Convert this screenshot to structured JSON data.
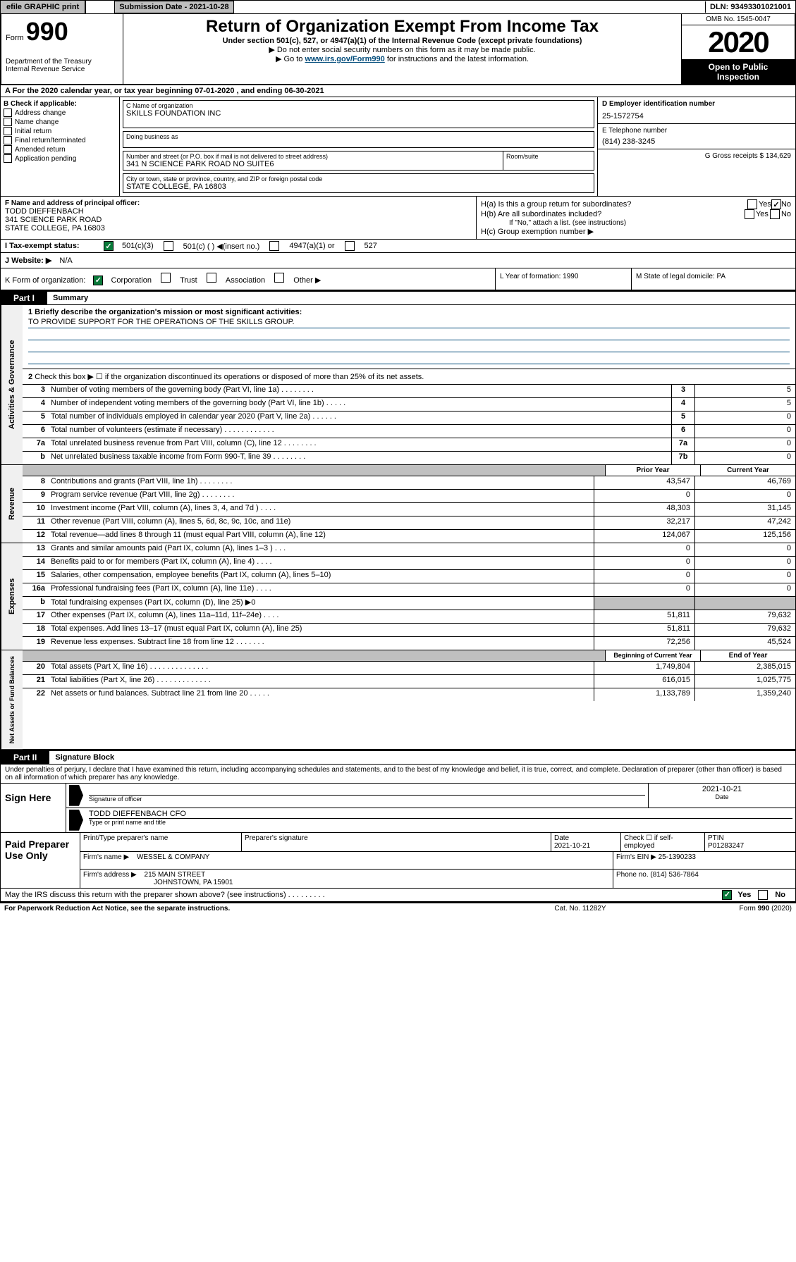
{
  "topbar": {
    "efile": "efile GRAPHIC print",
    "subdate_label": "Submission Date - 2021-10-28",
    "dln": "DLN: 93493301021001"
  },
  "header": {
    "form_prefix": "Form",
    "form_number": "990",
    "dept": "Department of the Treasury",
    "irs": "Internal Revenue Service",
    "title": "Return of Organization Exempt From Income Tax",
    "subtitle": "Under section 501(c), 527, or 4947(a)(1) of the Internal Revenue Code (except private foundations)",
    "note1": "▶ Do not enter social security numbers on this form as it may be made public.",
    "note2_pre": "▶ Go to ",
    "note2_link": "www.irs.gov/Form990",
    "note2_post": " for instructions and the latest information.",
    "omb": "OMB No. 1545-0047",
    "year": "2020",
    "inspect1": "Open to Public",
    "inspect2": "Inspection"
  },
  "row_a": "A   For the 2020 calendar year, or tax year beginning 07-01-2020     , and ending 06-30-2021",
  "col_b": {
    "header": "B Check if applicable:",
    "items": [
      "Address change",
      "Name change",
      "Initial return",
      "Final return/terminated",
      "Amended return",
      "Application pending"
    ]
  },
  "name_c": {
    "label": "C Name of organization",
    "value": "SKILLS FOUNDATION INC",
    "dba_label": "Doing business as",
    "addr_label": "Number and street (or P.O. box if mail is not delivered to street address)",
    "addr_value": "341 N SCIENCE PARK ROAD NO SUITE6",
    "room_label": "Room/suite",
    "city_label": "City or town, state or province, country, and ZIP or foreign postal code",
    "city_value": "STATE COLLEGE, PA  16803"
  },
  "col_d": {
    "label": "D Employer identification number",
    "value": "25-1572754"
  },
  "col_e": {
    "label": "E Telephone number",
    "value": "(814) 238-3245"
  },
  "col_g": {
    "label": "G Gross receipts $ 134,629"
  },
  "f_box": {
    "label": "F  Name and address of principal officer:",
    "name": "TODD DIEFFENBACH",
    "addr1": "341 SCIENCE PARK ROAD",
    "addr2": "STATE COLLEGE, PA  16803"
  },
  "h_box": {
    "ha": "H(a)  Is this a group return for subordinates?",
    "hb": "H(b)  Are all subordinates included?",
    "hb_note": "If \"No,\" attach a list. (see instructions)",
    "hc": "H(c)  Group exemption number ▶",
    "yes": "Yes",
    "no": "No"
  },
  "tax_status": {
    "label": "I    Tax-exempt status:",
    "opt1": "501(c)(3)",
    "opt2": "501(c) (  ) ◀(insert no.)",
    "opt3": "4947(a)(1) or",
    "opt4": "527"
  },
  "website": {
    "label": "J   Website: ▶",
    "value": "N/A"
  },
  "k_row": {
    "label": "K Form of organization:",
    "corp": "Corporation",
    "trust": "Trust",
    "assoc": "Association",
    "other": "Other ▶",
    "l": "L Year of formation: 1990",
    "m": "M State of legal domicile: PA"
  },
  "parts": {
    "p1": "Part I",
    "p1_title": "Summary",
    "p2": "Part II",
    "p2_title": "Signature Block"
  },
  "sides": {
    "gov": "Activities & Governance",
    "rev": "Revenue",
    "exp": "Expenses",
    "net": "Net Assets or Fund Balances"
  },
  "mission": {
    "label": "1   Briefly describe the organization's mission or most significant activities:",
    "text": "TO PROVIDE SUPPORT FOR THE OPERATIONS OF THE SKILLS GROUP."
  },
  "gov_lines": {
    "l2": "Check this box ▶ ☐  if the organization discontinued its operations or disposed of more than 25% of its net assets.",
    "l3": {
      "num": "3",
      "desc": "Number of voting members of the governing body (Part VI, line 1a)   .   .   .   .   .   .   .   .",
      "key": "3",
      "val": "5"
    },
    "l4": {
      "num": "4",
      "desc": "Number of independent voting members of the governing body (Part VI, line 1b)   .   .   .   .   .",
      "key": "4",
      "val": "5"
    },
    "l5": {
      "num": "5",
      "desc": "Total number of individuals employed in calendar year 2020 (Part V, line 2a)   .   .   .   .   .   .",
      "key": "5",
      "val": "0"
    },
    "l6": {
      "num": "6",
      "desc": "Total number of volunteers (estimate if necessary)   .   .   .   .   .   .   .   .   .   .   .   .",
      "key": "6",
      "val": "0"
    },
    "l7a": {
      "num": "7a",
      "desc": "Total unrelated business revenue from Part VIII, column (C), line 12   .   .   .   .   .   .   .   .",
      "key": "7a",
      "val": "0"
    },
    "l7b": {
      "num": "b",
      "desc": "Net unrelated business taxable income from Form 990-T, line 39    .   .   .   .   .   .   .   .",
      "key": "7b",
      "val": "0"
    }
  },
  "year_hdr": {
    "prior": "Prior Year",
    "current": "Current Year"
  },
  "rev_lines": [
    {
      "num": "8",
      "desc": "Contributions and grants (Part VIII, line 1h)   .   .   .   .   .   .   .   .",
      "prior": "43,547",
      "curr": "46,769"
    },
    {
      "num": "9",
      "desc": "Program service revenue (Part VIII, line 2g)   .   .   .   .   .   .   .   .",
      "prior": "0",
      "curr": "0"
    },
    {
      "num": "10",
      "desc": "Investment income (Part VIII, column (A), lines 3, 4, and 7d )   .   .   .   .",
      "prior": "48,303",
      "curr": "31,145"
    },
    {
      "num": "11",
      "desc": "Other revenue (Part VIII, column (A), lines 5, 6d, 8c, 9c, 10c, and 11e)",
      "prior": "32,217",
      "curr": "47,242"
    },
    {
      "num": "12",
      "desc": "Total revenue—add lines 8 through 11 (must equal Part VIII, column (A), line 12)",
      "prior": "124,067",
      "curr": "125,156"
    }
  ],
  "exp_lines": [
    {
      "num": "13",
      "desc": "Grants and similar amounts paid (Part IX, column (A), lines 1–3 )   .   .   .",
      "prior": "0",
      "curr": "0"
    },
    {
      "num": "14",
      "desc": "Benefits paid to or for members (Part IX, column (A), line 4)   .   .   .   .",
      "prior": "0",
      "curr": "0"
    },
    {
      "num": "15",
      "desc": "Salaries, other compensation, employee benefits (Part IX, column (A), lines 5–10)",
      "prior": "0",
      "curr": "0"
    },
    {
      "num": "16a",
      "desc": "Professional fundraising fees (Part IX, column (A), line 11e)   .   .   .   .",
      "prior": "0",
      "curr": "0"
    },
    {
      "num": "b",
      "desc": "Total fundraising expenses (Part IX, column (D), line 25) ▶0",
      "prior": "gray",
      "curr": "gray"
    },
    {
      "num": "17",
      "desc": "Other expenses (Part IX, column (A), lines 11a–11d, 11f–24e)   .   .   .   .",
      "prior": "51,811",
      "curr": "79,632"
    },
    {
      "num": "18",
      "desc": "Total expenses. Add lines 13–17 (must equal Part IX, column (A), line 25)",
      "prior": "51,811",
      "curr": "79,632"
    },
    {
      "num": "19",
      "desc": "Revenue less expenses. Subtract line 18 from line 12   .   .   .   .   .   .   .",
      "prior": "72,256",
      "curr": "45,524"
    }
  ],
  "net_hdr": {
    "beg": "Beginning of Current Year",
    "end": "End of Year"
  },
  "net_lines": [
    {
      "num": "20",
      "desc": "Total assets (Part X, line 16)   .   .   .   .   .   .   .   .   .   .   .   .   .   .",
      "prior": "1,749,804",
      "curr": "2,385,015"
    },
    {
      "num": "21",
      "desc": "Total liabilities (Part X, line 26)   .   .   .   .   .   .   .   .   .   .   .   .   .",
      "prior": "616,015",
      "curr": "1,025,775"
    },
    {
      "num": "22",
      "desc": "Net assets or fund balances. Subtract line 21 from line 20   .   .   .   .   .",
      "prior": "1,133,789",
      "curr": "1,359,240"
    }
  ],
  "perjury": "Under penalties of perjury, I declare that I have examined this return, including accompanying schedules and statements, and to the best of my knowledge and belief, it is true, correct, and complete. Declaration of preparer (other than officer) is based on all information of which preparer has any knowledge.",
  "sign": {
    "label": "Sign Here",
    "sig_label": "Signature of officer",
    "date": "2021-10-21",
    "date_label": "Date",
    "name": "TODD DIEFFENBACH CFO",
    "name_label": "Type or print name and title"
  },
  "paid": {
    "label": "Paid Preparer Use Only",
    "h1": "Print/Type preparer's name",
    "h2": "Preparer's signature",
    "h3": "Date",
    "h3v": "2021-10-21",
    "h4": "Check ☐ if self-employed",
    "h5": "PTIN",
    "h5v": "P01283247",
    "firm_name_label": "Firm's name     ▶",
    "firm_name": "WESSEL & COMPANY",
    "firm_ein_label": "Firm's EIN ▶",
    "firm_ein": "25-1390233",
    "firm_addr_label": "Firm's address ▶",
    "firm_addr1": "215 MAIN STREET",
    "firm_addr2": "JOHNSTOWN, PA  15901",
    "phone_label": "Phone no.",
    "phone": "(814) 536-7864"
  },
  "discuss": {
    "text": "May the IRS discuss this return with the preparer shown above? (see instructions)   .   .   .   .   .   .   .   .   .",
    "yes": "Yes",
    "no": "No"
  },
  "footer": {
    "left": "For Paperwork Reduction Act Notice, see the separate instructions.",
    "mid": "Cat. No. 11282Y",
    "right": "Form 990 (2020)"
  }
}
